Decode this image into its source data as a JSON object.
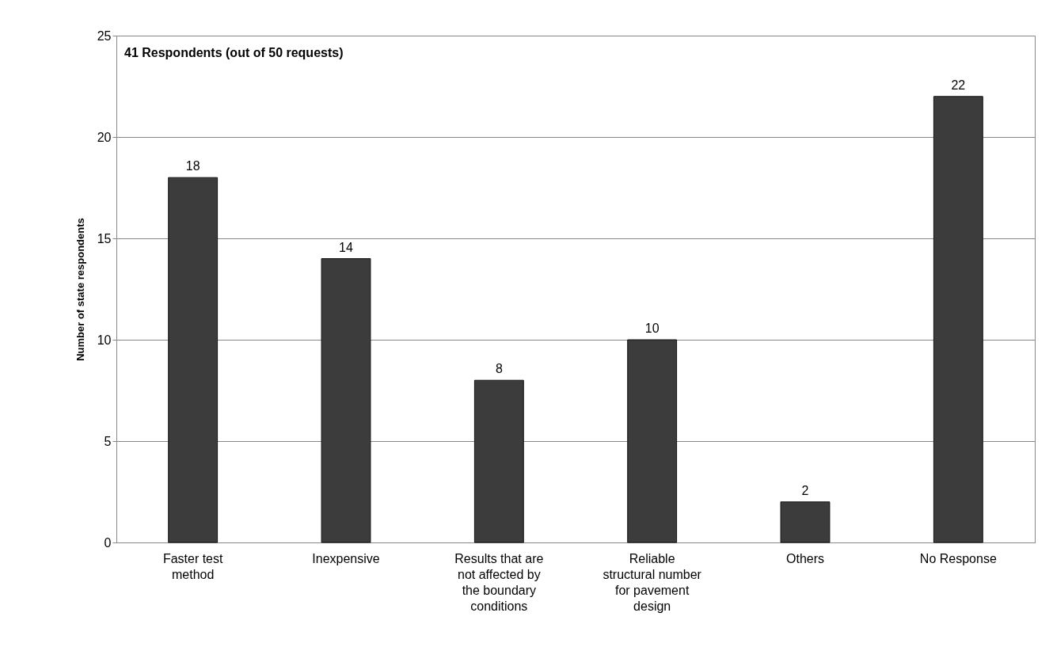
{
  "chart_data": {
    "type": "bar",
    "categories": [
      "Faster test method",
      "Inexpensive",
      "Results that are not affected by the boundary conditions",
      "Reliable structural number for pavement design",
      "Others",
      "No Response"
    ],
    "values": [
      18,
      14,
      8,
      10,
      2,
      22
    ],
    "color": "#3c3c3c",
    "ylabel": "Number of state respondents",
    "ylim": [
      0,
      25
    ],
    "yticks": [
      0,
      5,
      10,
      15,
      20,
      25
    ],
    "grid": "y",
    "data_labels": true,
    "annotations": [
      "41 Respondents (out of 50 requests)"
    ]
  }
}
